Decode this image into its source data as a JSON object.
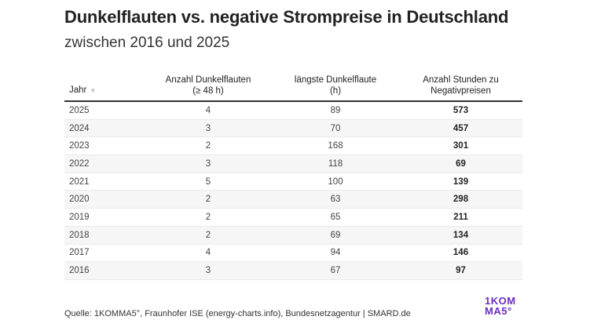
{
  "title": "Dunkelflauten vs. negative Strompreise in Deutschland",
  "subtitle": "zwischen 2016 und 2025",
  "sort_icon": "▼",
  "footer": "Quelle: 1KOMMA5°, Fraunhofer ISE (energy-charts.info), Bundesnetzagentur | SMARD.de",
  "logo": {
    "line1": "1KOM",
    "line2": "MA5°",
    "color": "#6a2dbe"
  },
  "chart_data": {
    "type": "table",
    "title": "Dunkelflauten vs. negative Strompreise in Deutschland",
    "subtitle": "zwischen 2016 und 2025",
    "columns": [
      {
        "label": "Jahr",
        "sorted": "descending"
      },
      {
        "label_line1": "Anzahl Dunkelflauten",
        "label_line2": "(≥ 48 h)"
      },
      {
        "label_line1": "längste Dunkelflaute",
        "label_line2": "(h)"
      },
      {
        "label_line1": "Anzahl Stunden zu",
        "label_line2": "Negativpreisen"
      }
    ],
    "rows": [
      {
        "year": "2025",
        "count": "4",
        "longest": "89",
        "negative_hours": "573"
      },
      {
        "year": "2024",
        "count": "3",
        "longest": "70",
        "negative_hours": "457"
      },
      {
        "year": "2023",
        "count": "2",
        "longest": "168",
        "negative_hours": "301"
      },
      {
        "year": "2022",
        "count": "3",
        "longest": "118",
        "negative_hours": "69"
      },
      {
        "year": "2021",
        "count": "5",
        "longest": "100",
        "negative_hours": "139"
      },
      {
        "year": "2020",
        "count": "2",
        "longest": "63",
        "negative_hours": "298"
      },
      {
        "year": "2019",
        "count": "2",
        "longest": "65",
        "negative_hours": "211"
      },
      {
        "year": "2018",
        "count": "2",
        "longest": "69",
        "negative_hours": "134"
      },
      {
        "year": "2017",
        "count": "4",
        "longest": "94",
        "negative_hours": "146"
      },
      {
        "year": "2016",
        "count": "3",
        "longest": "67",
        "negative_hours": "97"
      }
    ],
    "source": "Quelle: 1KOMMA5°, Fraunhofer ISE (energy-charts.info), Bundesnetzagentur | SMARD.de"
  }
}
